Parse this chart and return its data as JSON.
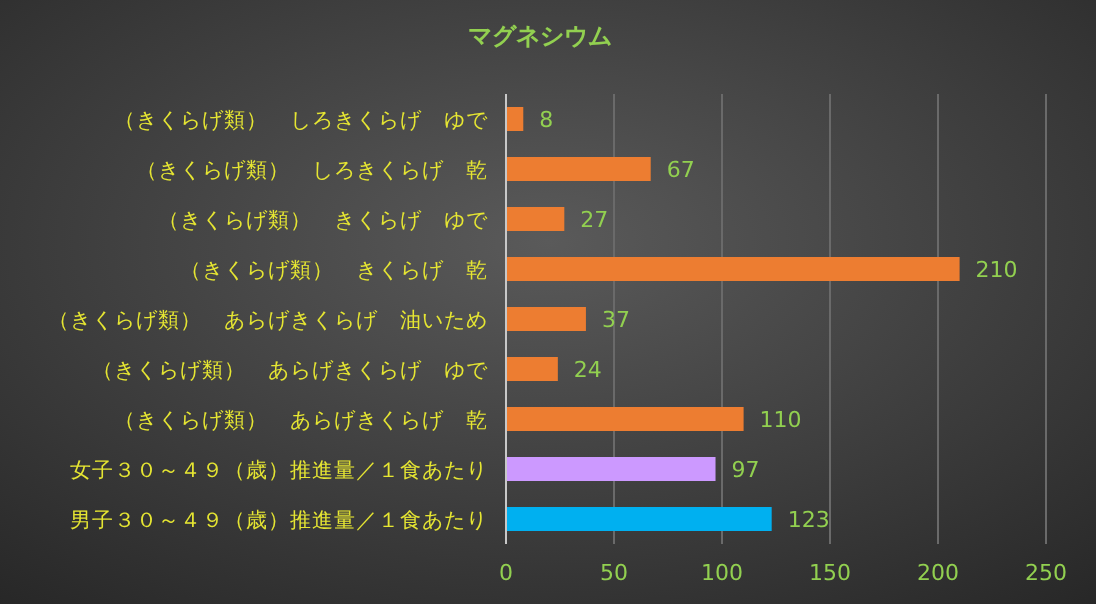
{
  "chart_data": {
    "type": "bar",
    "orientation": "horizontal",
    "title": "マグネシウム",
    "categories": [
      "（きくらげ類）　しろきくらげ　ゆで",
      "（きくらげ類）　しろきくらげ　乾",
      "（きくらげ類）　きくらげ　ゆで",
      "（きくらげ類）　きくらげ　乾",
      "（きくらげ類）　あらげきくらげ　油いため",
      "（きくらげ類）　あらげきくらげ　ゆで",
      "（きくらげ類）　あらげきくらげ　乾",
      "女子３０～４９（歳）推進量／１食あたり",
      "男子３０～４９（歳）推進量／１食あたり"
    ],
    "values": [
      8,
      67,
      27,
      210,
      37,
      24,
      110,
      97,
      123
    ],
    "colors": [
      "#ed7d31",
      "#ed7d31",
      "#ed7d31",
      "#ed7d31",
      "#ed7d31",
      "#ed7d31",
      "#ed7d31",
      "#cc99ff",
      "#00b0f0"
    ],
    "xlim": [
      0,
      250
    ],
    "xticks": [
      0,
      50,
      100,
      150,
      200,
      250
    ],
    "grid": "x",
    "data_labels": true
  }
}
